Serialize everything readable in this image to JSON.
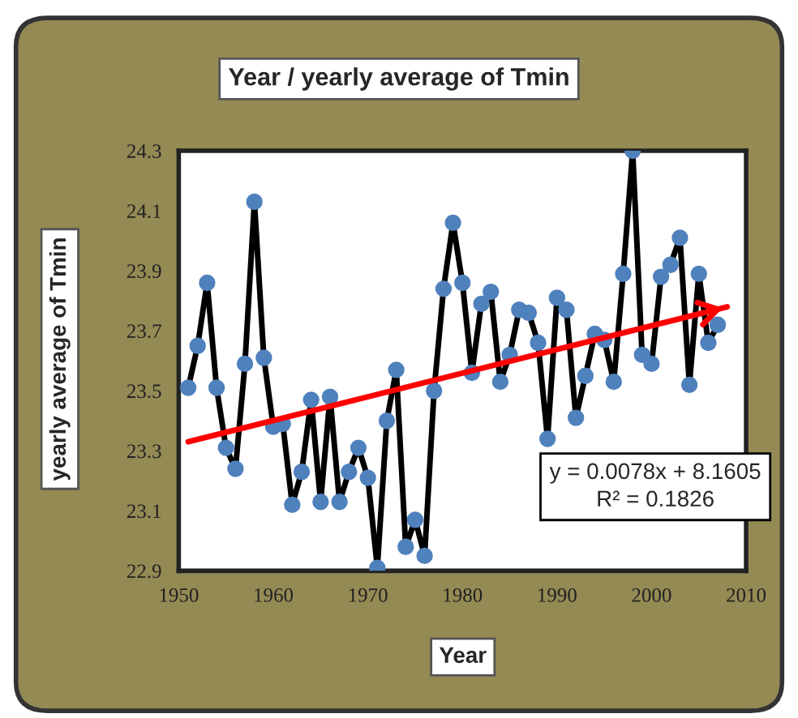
{
  "chart_data": {
    "type": "line",
    "title": "Year / yearly average of Tmin",
    "xlabel": "Year",
    "ylabel": "yearly average of Tmin",
    "series": [
      {
        "color": "#000000",
        "marker": "circle",
        "x": [
          1951,
          1952,
          1953,
          1954,
          1955,
          1956,
          1957,
          1958,
          1959,
          1960,
          1961,
          1962,
          1963,
          1964,
          1965,
          1966,
          1967,
          1968,
          1969,
          1970,
          1971,
          1972,
          1973,
          1974,
          1975,
          1976,
          1977,
          1978,
          1979,
          1980,
          1981,
          1982,
          1983,
          1984,
          1985,
          1986,
          1987,
          1988,
          1989,
          1990,
          1991,
          1992,
          1993,
          1994,
          1995,
          1996,
          1997,
          1998,
          1999,
          2000,
          2001,
          2002,
          2003,
          2004,
          2005,
          2006,
          2007
        ],
        "values": [
          23.51,
          23.65,
          23.86,
          23.51,
          23.31,
          23.24,
          23.59,
          24.13,
          23.61,
          23.38,
          23.39,
          23.12,
          23.23,
          23.47,
          23.13,
          23.48,
          23.13,
          23.23,
          23.31,
          23.21,
          22.91,
          23.4,
          23.57,
          22.98,
          23.07,
          22.95,
          23.5,
          23.84,
          24.06,
          23.86,
          23.56,
          23.79,
          23.83,
          23.53,
          23.62,
          23.77,
          23.76,
          23.66,
          23.34,
          23.81,
          23.77,
          23.41,
          23.55,
          23.69,
          23.67,
          23.53,
          23.89,
          24.3,
          23.62,
          23.59,
          23.88,
          23.92,
          24.01,
          23.52,
          23.89,
          23.66,
          23.72
        ]
      },
      {
        "color": "#ff0000",
        "marker": "none",
        "x": [
          1951,
          2008
        ],
        "values": [
          23.33,
          23.78
        ]
      }
    ],
    "annotations": [
      "y = 0.0078x + 8.1605\nR² = 0.1826"
    ],
    "xlim": [
      1950,
      2010
    ],
    "xticks": [
      1950,
      1960,
      1970,
      1980,
      1990,
      2000,
      2010
    ],
    "ylim": [
      22.9,
      24.3
    ],
    "yticks": [
      {
        "value": 22.9,
        "label": "22.9"
      },
      {
        "value": 23.1,
        "label": "23.1"
      },
      {
        "value": 23.3,
        "label": "23.3"
      },
      {
        "value": 23.5,
        "label": "23.5"
      },
      {
        "value": 23.7,
        "label": "23.7"
      },
      {
        "value": 23.9,
        "label": "23.9"
      },
      {
        "value": 24.1,
        "label": "24.1"
      },
      {
        "value": 24.3,
        "label": "24.3"
      }
    ],
    "grid": false,
    "legend": false
  }
}
